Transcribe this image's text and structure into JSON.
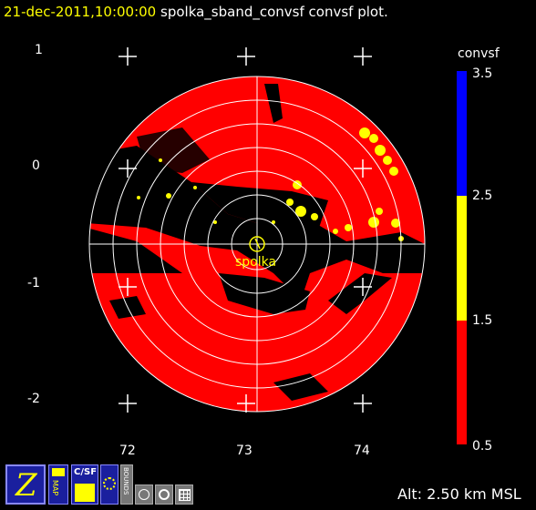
{
  "title": {
    "date": "21-dec-2011,10:00:00",
    "rest": "spolka_sband_convsf convsf  plot."
  },
  "y_ticks": [
    "1",
    "0",
    "-1",
    "-2"
  ],
  "x_ticks": [
    "72",
    "73",
    "74"
  ],
  "station": "spolka",
  "colorbar": {
    "title": "convsf",
    "labels": [
      "3.5",
      "2.5",
      "1.5",
      "0.5"
    ],
    "colors": [
      "#0000ff",
      "#ffff00",
      "#ff0000"
    ]
  },
  "toolbar": {
    "zebra_label": "Z",
    "map_label": "MAP",
    "csf_label": "C/SF",
    "bounds_label": "BOUNDS"
  },
  "altitude": "Alt: 2.50 km MSL",
  "colors": {
    "echo": "#ff0000",
    "cell": "#ffff00",
    "grid": "#ffffff"
  }
}
